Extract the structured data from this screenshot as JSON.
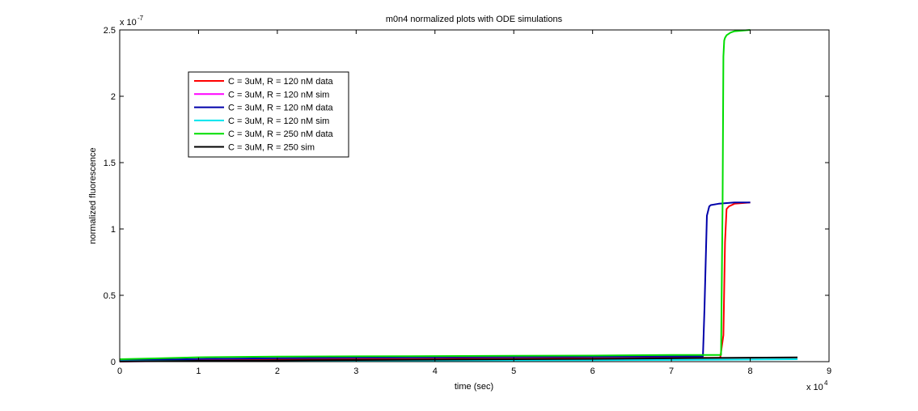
{
  "chart_data": {
    "type": "line",
    "title": "m0n4 normalized plots with ODE simulations",
    "xlabel": "time (sec)",
    "ylabel": "normalized fluorescence",
    "x_multiplier": "x 10",
    "x_exponent": "4",
    "y_multiplier": "x 10",
    "y_exponent": "-7",
    "xlim": [
      0,
      90000
    ],
    "ylim": [
      0,
      2.5e-07
    ],
    "x_ticks": [
      0,
      10000,
      20000,
      30000,
      40000,
      50000,
      60000,
      70000,
      80000,
      90000
    ],
    "x_tick_labels": [
      "0",
      "1",
      "2",
      "3",
      "4",
      "5",
      "6",
      "7",
      "8",
      "9"
    ],
    "y_ticks": [
      0,
      5e-08,
      1e-07,
      1.5e-07,
      2e-07,
      2.5e-07
    ],
    "y_tick_labels": [
      "0",
      "0.5",
      "1",
      "1.5",
      "2",
      "2.5"
    ],
    "grid": false,
    "legend_position": "top-left",
    "series": [
      {
        "name": "C = 3uM, R = 120 nM data",
        "color": "#ff0000",
        "x": [
          0,
          10000,
          20000,
          30000,
          40000,
          50000,
          60000,
          70000,
          76200,
          76600,
          76800,
          77000,
          77300,
          78000,
          80000
        ],
        "y": [
          2e-10,
          1e-09,
          1.5e-09,
          1.9e-09,
          2.1e-09,
          2.3e-09,
          2.5e-09,
          2.8e-09,
          3e-09,
          2e-08,
          9e-08,
          1.15e-07,
          1.17e-07,
          1.19e-07,
          1.2e-07
        ]
      },
      {
        "name": "C = 3uM, R = 120 nM sim",
        "color": "#ff00ff",
        "x": [
          0,
          10000,
          20000,
          30000,
          40000,
          50000,
          60000,
          64000
        ],
        "y": [
          1e-10,
          5e-10,
          8e-10,
          1e-09,
          1.1e-09,
          1.2e-09,
          1.3e-09,
          1.3e-09
        ]
      },
      {
        "name": "C = 3uM, R = 120 nM data",
        "color": "#0000aa",
        "x": [
          0,
          10000,
          20000,
          30000,
          40000,
          50000,
          60000,
          70000,
          74000,
          74200,
          74500,
          74800,
          75000,
          76000,
          78000,
          80000
        ],
        "y": [
          1e-09,
          2e-09,
          2.6e-09,
          3e-09,
          3.3e-09,
          3.5e-09,
          3.7e-09,
          3.9e-09,
          4e-09,
          4e-08,
          1.1e-07,
          1.17e-07,
          1.18e-07,
          1.19e-07,
          1.2e-07,
          1.2e-07
        ]
      },
      {
        "name": "C = 3uM, R = 120 nM sim",
        "color": "#00e5ee",
        "x": [
          0,
          10000,
          20000,
          30000,
          40000,
          50000,
          60000,
          70000,
          80000,
          86000
        ],
        "y": [
          5e-10,
          6e-10,
          7e-10,
          8e-10,
          9e-10,
          1e-09,
          1.1e-09,
          1.3e-09,
          1.6e-09,
          1.8e-09
        ]
      },
      {
        "name": "C = 3uM, R = 250 nM data",
        "color": "#00dd00",
        "x": [
          0,
          5000,
          10000,
          20000,
          30000,
          40000,
          50000,
          60000,
          70000,
          76300,
          76500,
          76600,
          76700,
          76800,
          77000,
          77500,
          78000,
          80000
        ],
        "y": [
          1.8e-09,
          2.5e-09,
          3.3e-09,
          3.8e-09,
          4e-09,
          4.2e-09,
          4.4e-09,
          4.6e-09,
          5e-09,
          5e-09,
          1.2e-07,
          2.3e-07,
          2.42e-07,
          2.44e-07,
          2.46e-07,
          2.48e-07,
          2.49e-07,
          2.5e-07
        ]
      },
      {
        "name": "C = 3uM, R = 250 sim",
        "color": "#000000",
        "x": [
          0,
          10000,
          20000,
          30000,
          40000,
          50000,
          60000,
          70000,
          80000,
          86000
        ],
        "y": [
          2e-10,
          6e-10,
          9e-10,
          1.2e-09,
          1.5e-09,
          1.8e-09,
          2.1e-09,
          2.5e-09,
          3e-09,
          3.2e-09
        ]
      }
    ]
  }
}
